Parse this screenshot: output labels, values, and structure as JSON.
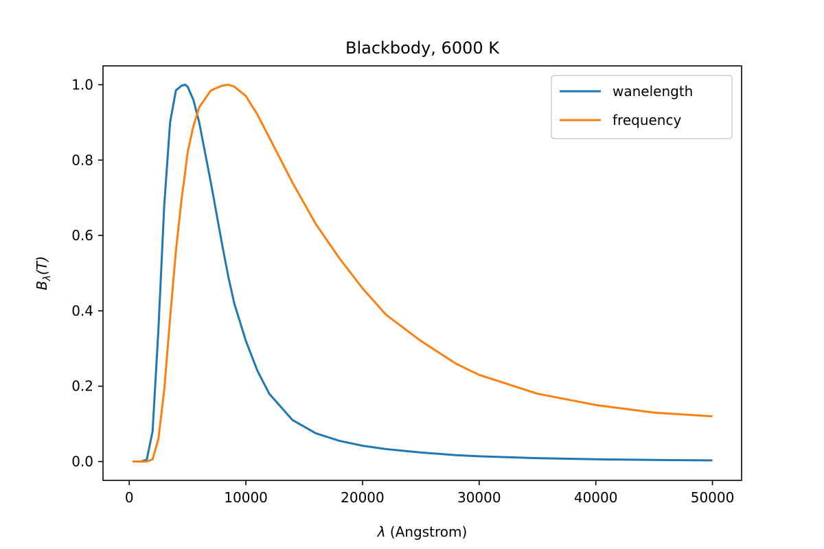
{
  "chart_data": {
    "type": "line",
    "title": "Blackbody, 6000 K",
    "xlabel_symbol": "λ",
    "xlabel_text": " (Angstrom)",
    "ylabel_main": "B",
    "ylabel_sub": "λ",
    "ylabel_rest": "(T)",
    "xlim": [
      -2250,
      52500
    ],
    "ylim": [
      -0.05,
      1.05
    ],
    "x_ticks": [
      0,
      10000,
      20000,
      30000,
      40000,
      50000
    ],
    "y_ticks": [
      0.0,
      0.2,
      0.4,
      0.6,
      0.8,
      1.0
    ],
    "x_tick_labels": [
      "0",
      "10000",
      "20000",
      "30000",
      "40000",
      "50000"
    ],
    "y_tick_labels": [
      "0.0",
      "0.2",
      "0.4",
      "0.6",
      "0.8",
      "1.0"
    ],
    "grid": false,
    "legend_position": "top-right",
    "x": [
      300,
      1000,
      1500,
      2000,
      2500,
      3000,
      3500,
      4000,
      4500,
      4800,
      5000,
      5500,
      6000,
      7000,
      8000,
      8500,
      9000,
      10000,
      11000,
      12000,
      14000,
      16000,
      18000,
      20000,
      22000,
      25000,
      28000,
      30000,
      35000,
      40000,
      45000,
      50000
    ],
    "series": [
      {
        "name": "wanelength",
        "color": "#1f77b4",
        "values": [
          0.0,
          0.0,
          0.005,
          0.08,
          0.35,
          0.68,
          0.9,
          0.985,
          0.998,
          1.0,
          0.995,
          0.96,
          0.9,
          0.74,
          0.57,
          0.49,
          0.42,
          0.32,
          0.24,
          0.18,
          0.11,
          0.075,
          0.055,
          0.042,
          0.033,
          0.024,
          0.017,
          0.014,
          0.009,
          0.006,
          0.004,
          0.003
        ]
      },
      {
        "name": "frequency",
        "color": "#ff7f0e",
        "values": [
          0.0,
          0.0,
          0.0,
          0.006,
          0.06,
          0.19,
          0.38,
          0.56,
          0.7,
          0.77,
          0.82,
          0.89,
          0.94,
          0.985,
          0.998,
          1.0,
          0.995,
          0.97,
          0.92,
          0.86,
          0.74,
          0.63,
          0.54,
          0.46,
          0.39,
          0.32,
          0.26,
          0.23,
          0.18,
          0.15,
          0.13,
          0.12
        ]
      }
    ]
  }
}
